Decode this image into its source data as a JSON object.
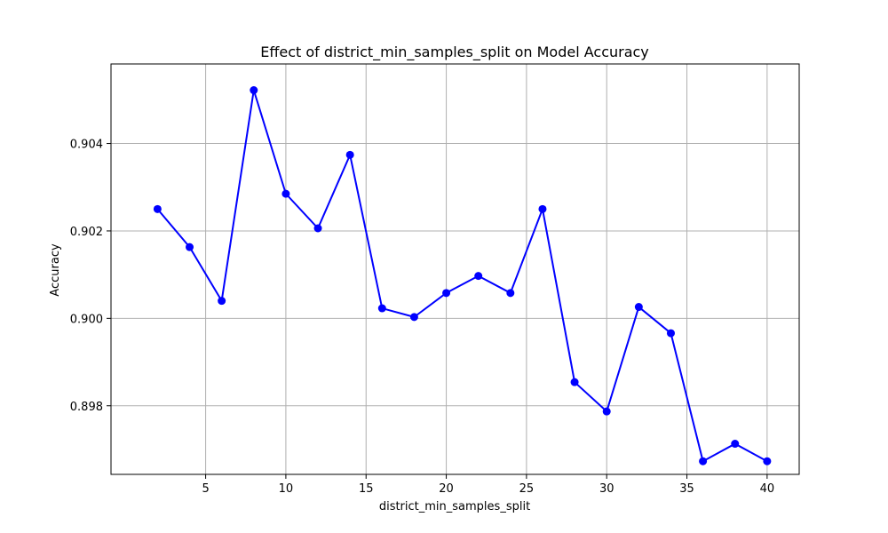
{
  "chart_data": {
    "type": "line",
    "title": "Effect of district_min_samples_split on Model Accuracy",
    "xlabel": "district_min_samples_split",
    "ylabel": "Accuracy",
    "x": [
      2,
      4,
      6,
      8,
      10,
      12,
      14,
      16,
      18,
      20,
      22,
      24,
      26,
      28,
      30,
      32,
      34,
      36,
      38,
      40
    ],
    "series": [
      {
        "values": [
          0.9025,
          0.90163,
          0.9004,
          0.90522,
          0.90285,
          0.90206,
          0.90374,
          0.90023,
          0.90003,
          0.90058,
          0.90097,
          0.90058,
          0.9025,
          0.89854,
          0.89787,
          0.90026,
          0.89966,
          0.89673,
          0.89713,
          0.89673
        ],
        "color": "#0000ff",
        "marker": "circle"
      }
    ],
    "xlim": [
      -0.9,
      42.0
    ],
    "ylim": [
      0.89643,
      0.90582
    ],
    "xticks": [
      5,
      10,
      15,
      20,
      25,
      30,
      35,
      40
    ],
    "yticks": [
      0.898,
      0.9,
      0.902,
      0.904
    ],
    "ytick_labels": [
      "0.898",
      "0.900",
      "0.902",
      "0.904"
    ],
    "grid": true,
    "legend": false
  }
}
